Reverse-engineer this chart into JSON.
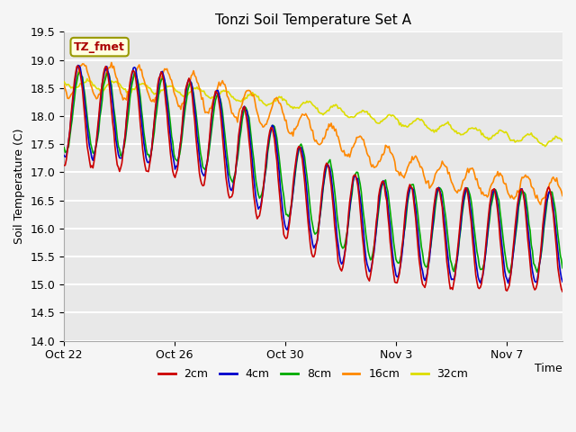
{
  "title": "Tonzi Soil Temperature Set A",
  "ylabel": "Soil Temperature (C)",
  "xlabel": "Time",
  "legend_label": "TZ_fmet",
  "ylim": [
    14.0,
    19.5
  ],
  "xlim": [
    0,
    18
  ],
  "colors": {
    "2cm": "#cc0000",
    "4cm": "#0000cc",
    "8cm": "#00aa00",
    "16cm": "#ff8800",
    "32cm": "#dddd00"
  },
  "plot_bg_color": "#e8e8e8",
  "fig_bg_color": "#f5f5f5",
  "grid_color": "#ffffff",
  "tick_days": [
    0,
    4,
    8,
    12,
    16
  ],
  "tick_labels": [
    "Oct 22",
    "Oct 26",
    "Oct 30",
    "Nov 3",
    "Nov 7"
  ],
  "yticks": [
    14.0,
    14.5,
    15.0,
    15.5,
    16.0,
    16.5,
    17.0,
    17.5,
    18.0,
    18.5,
    19.0,
    19.5
  ],
  "total_days": 18,
  "n_points": 432,
  "figsize": [
    6.4,
    4.8
  ],
  "dpi": 100
}
